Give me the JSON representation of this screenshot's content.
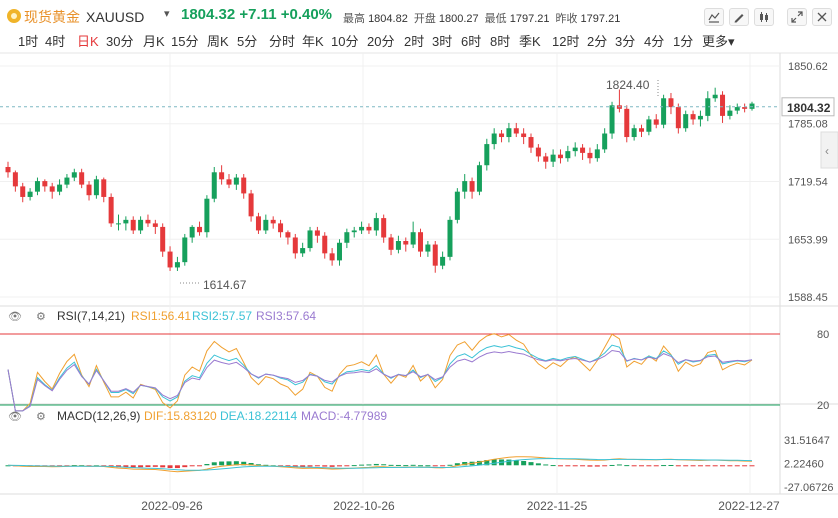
{
  "header": {
    "name_cn": "现货黄金",
    "symbol": "XAUUSD",
    "price": "1804.32",
    "change": "+7.11",
    "change_pct": "+0.40%",
    "stats": [
      {
        "label": "最高",
        "value": "1804.82"
      },
      {
        "label": "开盘",
        "value": "1800.27"
      },
      {
        "label": "最低",
        "value": "1797.21"
      },
      {
        "label": "昨收",
        "value": "1797.21"
      }
    ]
  },
  "periods": [
    "1时",
    "4时",
    "日K",
    "30分",
    "月K",
    "15分",
    "周K",
    "5分",
    "分时",
    "年K",
    "10分",
    "20分",
    "2时",
    "3时",
    "6时",
    "8时",
    "季K",
    "12时",
    "2分",
    "3分",
    "4分",
    "1分",
    "更多"
  ],
  "active_period": "日K",
  "colors": {
    "up": "#e5393b",
    "down": "#16a05c",
    "rsi1": "#f0a030",
    "rsi2": "#3cc2d6",
    "rsi3": "#9a7ad0"
  },
  "chart_data": {
    "type": "candlestick",
    "price_axis": {
      "ticks": [
        "1850.62",
        "1785.08",
        "1719.54",
        "1653.99",
        "1588.45"
      ],
      "range": [
        1588.45,
        1850.62
      ]
    },
    "current_price": "1804.32",
    "annotations": {
      "high": "1824.40",
      "low": "1614.67"
    },
    "x_labels": [
      "2022-09-26",
      "2022-10-26",
      "2022-11-25",
      "2022-12-27"
    ],
    "candles": [
      [
        1736,
        1730,
        1742,
        1724
      ],
      [
        1730,
        1714,
        1732,
        1708
      ],
      [
        1714,
        1702,
        1718,
        1696
      ],
      [
        1702,
        1708,
        1712,
        1698
      ],
      [
        1708,
        1720,
        1724,
        1704
      ],
      [
        1720,
        1714,
        1722,
        1708
      ],
      [
        1714,
        1708,
        1718,
        1700
      ],
      [
        1708,
        1716,
        1722,
        1704
      ],
      [
        1716,
        1724,
        1728,
        1712
      ],
      [
        1724,
        1730,
        1734,
        1720
      ],
      [
        1730,
        1716,
        1734,
        1712
      ],
      [
        1716,
        1704,
        1720,
        1698
      ],
      [
        1704,
        1722,
        1726,
        1700
      ],
      [
        1722,
        1702,
        1724,
        1696
      ],
      [
        1702,
        1672,
        1706,
        1668
      ],
      [
        1672,
        1672,
        1682,
        1664
      ],
      [
        1672,
        1676,
        1680,
        1664
      ],
      [
        1676,
        1664,
        1680,
        1660
      ],
      [
        1664,
        1676,
        1680,
        1660
      ],
      [
        1676,
        1672,
        1682,
        1668
      ],
      [
        1672,
        1668,
        1676,
        1660
      ],
      [
        1668,
        1640,
        1672,
        1634
      ],
      [
        1640,
        1622,
        1646,
        1618
      ],
      [
        1622,
        1628,
        1634,
        1618
      ],
      [
        1628,
        1656,
        1660,
        1624
      ],
      [
        1656,
        1668,
        1670,
        1650
      ],
      [
        1668,
        1662,
        1674,
        1658
      ],
      [
        1662,
        1700,
        1704,
        1656
      ],
      [
        1700,
        1730,
        1736,
        1696
      ],
      [
        1730,
        1722,
        1738,
        1716
      ],
      [
        1722,
        1716,
        1728,
        1712
      ],
      [
        1716,
        1724,
        1728,
        1710
      ],
      [
        1724,
        1706,
        1728,
        1700
      ],
      [
        1706,
        1680,
        1710,
        1674
      ],
      [
        1680,
        1664,
        1684,
        1660
      ],
      [
        1664,
        1676,
        1682,
        1660
      ],
      [
        1676,
        1672,
        1680,
        1666
      ],
      [
        1672,
        1662,
        1676,
        1656
      ],
      [
        1662,
        1656,
        1664,
        1648
      ],
      [
        1656,
        1638,
        1660,
        1632
      ],
      [
        1638,
        1644,
        1650,
        1634
      ],
      [
        1644,
        1664,
        1668,
        1640
      ],
      [
        1664,
        1658,
        1668,
        1650
      ],
      [
        1658,
        1638,
        1662,
        1632
      ],
      [
        1638,
        1630,
        1644,
        1624
      ],
      [
        1630,
        1650,
        1654,
        1624
      ],
      [
        1650,
        1662,
        1666,
        1644
      ],
      [
        1662,
        1664,
        1668,
        1656
      ],
      [
        1664,
        1668,
        1674,
        1660
      ],
      [
        1668,
        1664,
        1672,
        1660
      ],
      [
        1664,
        1678,
        1684,
        1658
      ],
      [
        1678,
        1656,
        1682,
        1650
      ],
      [
        1656,
        1642,
        1660,
        1636
      ],
      [
        1642,
        1652,
        1658,
        1638
      ],
      [
        1652,
        1648,
        1656,
        1640
      ],
      [
        1648,
        1662,
        1674,
        1644
      ],
      [
        1662,
        1640,
        1666,
        1634
      ],
      [
        1640,
        1648,
        1652,
        1634
      ],
      [
        1648,
        1624,
        1652,
        1616
      ],
      [
        1624,
        1634,
        1640,
        1620
      ],
      [
        1634,
        1676,
        1680,
        1630
      ],
      [
        1676,
        1708,
        1712,
        1672
      ],
      [
        1708,
        1720,
        1728,
        1700
      ],
      [
        1720,
        1708,
        1724,
        1700
      ],
      [
        1708,
        1738,
        1742,
        1704
      ],
      [
        1738,
        1762,
        1768,
        1732
      ],
      [
        1762,
        1774,
        1780,
        1756
      ],
      [
        1774,
        1770,
        1778,
        1764
      ],
      [
        1770,
        1780,
        1786,
        1764
      ],
      [
        1780,
        1774,
        1786,
        1770
      ],
      [
        1774,
        1770,
        1780,
        1762
      ],
      [
        1770,
        1758,
        1774,
        1752
      ],
      [
        1758,
        1748,
        1762,
        1742
      ],
      [
        1748,
        1742,
        1752,
        1734
      ],
      [
        1742,
        1750,
        1756,
        1736
      ],
      [
        1750,
        1746,
        1756,
        1740
      ],
      [
        1746,
        1754,
        1760,
        1742
      ],
      [
        1754,
        1758,
        1764,
        1748
      ],
      [
        1758,
        1752,
        1762,
        1744
      ],
      [
        1752,
        1746,
        1758,
        1740
      ],
      [
        1746,
        1756,
        1762,
        1742
      ],
      [
        1756,
        1774,
        1780,
        1752
      ],
      [
        1774,
        1806,
        1810,
        1768
      ],
      [
        1806,
        1802,
        1824,
        1798
      ],
      [
        1802,
        1770,
        1806,
        1764
      ],
      [
        1770,
        1780,
        1784,
        1766
      ],
      [
        1780,
        1776,
        1784,
        1770
      ],
      [
        1776,
        1790,
        1794,
        1772
      ],
      [
        1790,
        1784,
        1796,
        1780
      ],
      [
        1784,
        1814,
        1818,
        1780
      ],
      [
        1814,
        1804,
        1820,
        1796
      ],
      [
        1804,
        1780,
        1808,
        1774
      ],
      [
        1780,
        1796,
        1800,
        1776
      ],
      [
        1796,
        1790,
        1800,
        1784
      ],
      [
        1790,
        1794,
        1800,
        1782
      ],
      [
        1794,
        1814,
        1822,
        1788
      ],
      [
        1814,
        1818,
        1826,
        1810
      ],
      [
        1818,
        1794,
        1822,
        1786
      ],
      [
        1794,
        1800,
        1806,
        1790
      ],
      [
        1800,
        1804,
        1808,
        1796
      ],
      [
        1804,
        1802,
        1808,
        1798
      ],
      [
        1802,
        1808,
        1810,
        1800
      ]
    ],
    "rsi": {
      "label": "RSI(7,14,21)",
      "values": {
        "rsi1": "RSI1:56.41",
        "rsi2": "RSI2:57.57",
        "rsi3": "RSI3:57.64"
      },
      "levels": [
        "80",
        "20"
      ]
    },
    "macd": {
      "label": "MACD(12,26,9)",
      "values": {
        "dif": "DIF:15.83120",
        "dea": "DEA:18.22114",
        "macd": "MACD:-4.77989"
      },
      "ticks": [
        "31.51647",
        "2.22460",
        "-27.06726"
      ],
      "range": [
        -27.06726,
        31.51647
      ]
    }
  }
}
